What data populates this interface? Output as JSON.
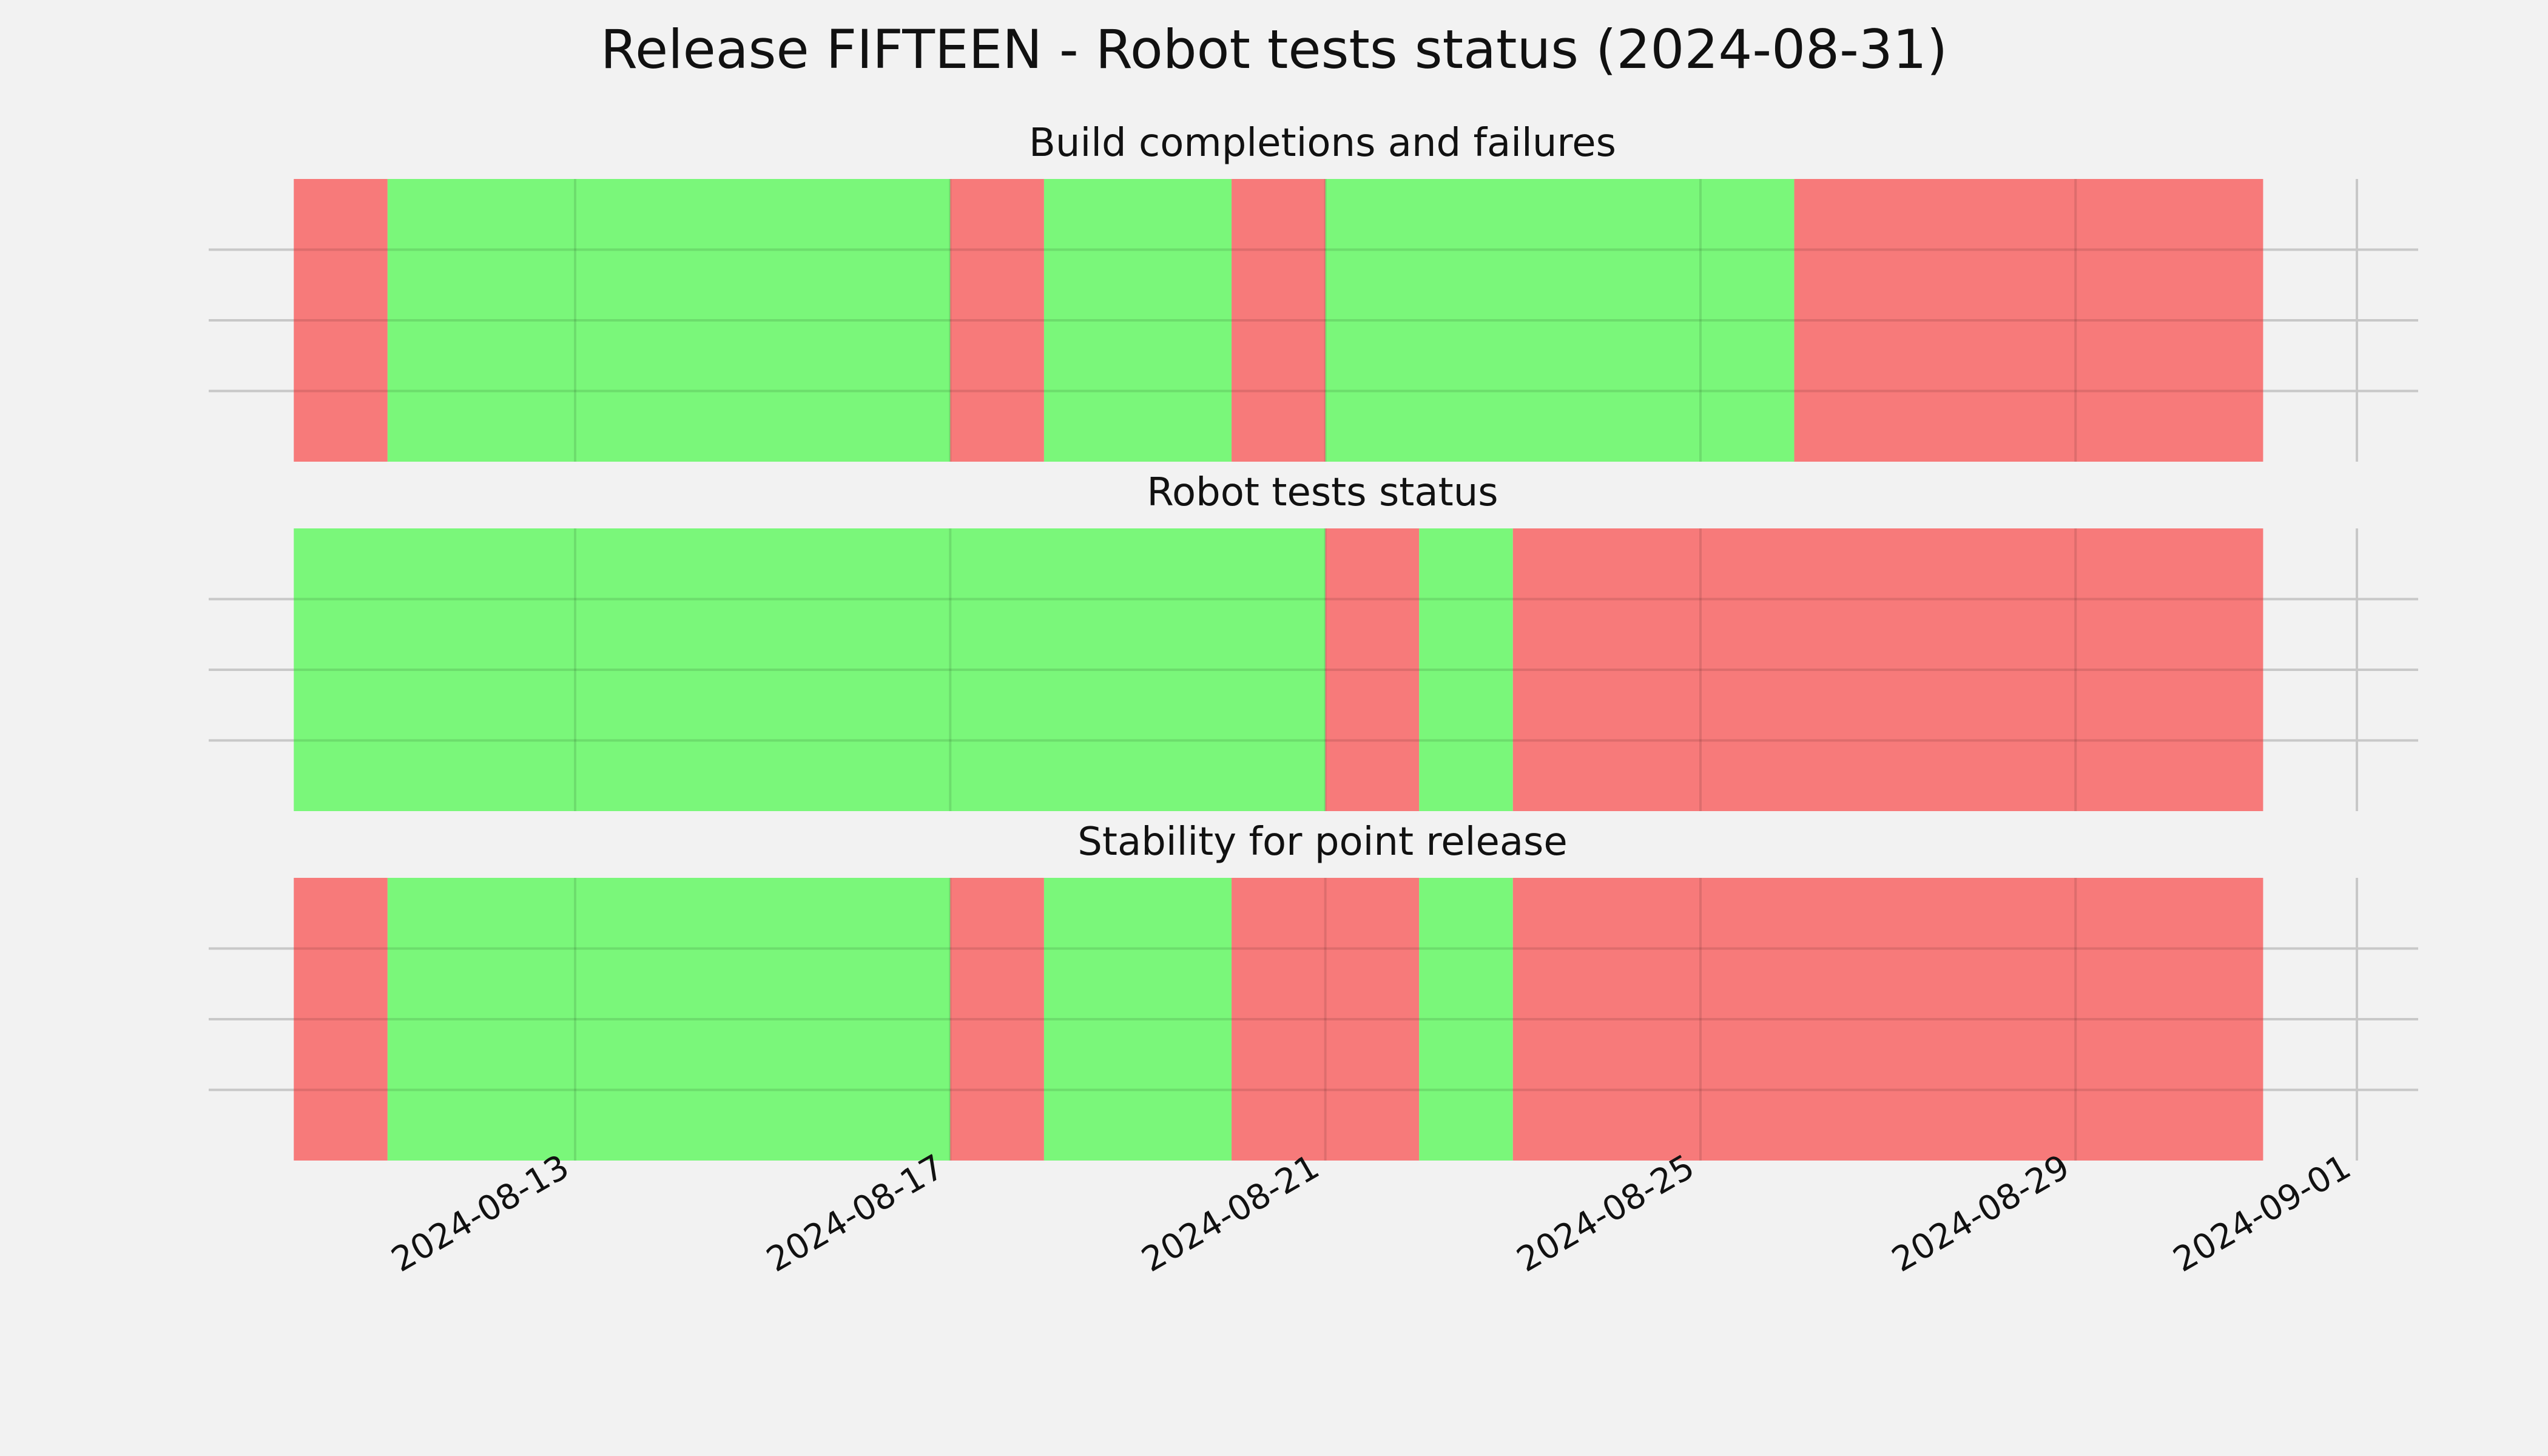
{
  "chart_data": {
    "type": "bar",
    "title": "Release FIFTEEN - Robot tests status (2024-08-31)",
    "x_range": [
      "2024-08-10",
      "2024-08-31"
    ],
    "x_ticks": [
      "2024-08-13",
      "2024-08-17",
      "2024-08-21",
      "2024-08-25",
      "2024-08-29",
      "2024-09-01"
    ],
    "colors": {
      "pass": "#77f777",
      "fail": "#f77777"
    },
    "grid": true,
    "panels": [
      {
        "title": "Build completions and failures",
        "segments": [
          {
            "start": "2024-08-10",
            "end": "2024-08-11",
            "status": "fail"
          },
          {
            "start": "2024-08-11",
            "end": "2024-08-17",
            "status": "pass"
          },
          {
            "start": "2024-08-17",
            "end": "2024-08-18",
            "status": "fail"
          },
          {
            "start": "2024-08-18",
            "end": "2024-08-20",
            "status": "pass"
          },
          {
            "start": "2024-08-20",
            "end": "2024-08-21",
            "status": "fail"
          },
          {
            "start": "2024-08-21",
            "end": "2024-08-26",
            "status": "pass"
          },
          {
            "start": "2024-08-26",
            "end": "2024-08-31",
            "status": "fail"
          }
        ]
      },
      {
        "title": "Robot tests status",
        "segments": [
          {
            "start": "2024-08-10",
            "end": "2024-08-21",
            "status": "pass"
          },
          {
            "start": "2024-08-21",
            "end": "2024-08-22",
            "status": "fail"
          },
          {
            "start": "2024-08-22",
            "end": "2024-08-23",
            "status": "pass"
          },
          {
            "start": "2024-08-23",
            "end": "2024-08-31",
            "status": "fail"
          }
        ]
      },
      {
        "title": "Stability for point release",
        "segments": [
          {
            "start": "2024-08-10",
            "end": "2024-08-11",
            "status": "fail"
          },
          {
            "start": "2024-08-11",
            "end": "2024-08-17",
            "status": "pass"
          },
          {
            "start": "2024-08-17",
            "end": "2024-08-18",
            "status": "fail"
          },
          {
            "start": "2024-08-18",
            "end": "2024-08-20",
            "status": "pass"
          },
          {
            "start": "2024-08-20",
            "end": "2024-08-22",
            "status": "fail"
          },
          {
            "start": "2024-08-22",
            "end": "2024-08-23",
            "status": "pass"
          },
          {
            "start": "2024-08-23",
            "end": "2024-08-31",
            "status": "fail"
          }
        ]
      }
    ]
  }
}
